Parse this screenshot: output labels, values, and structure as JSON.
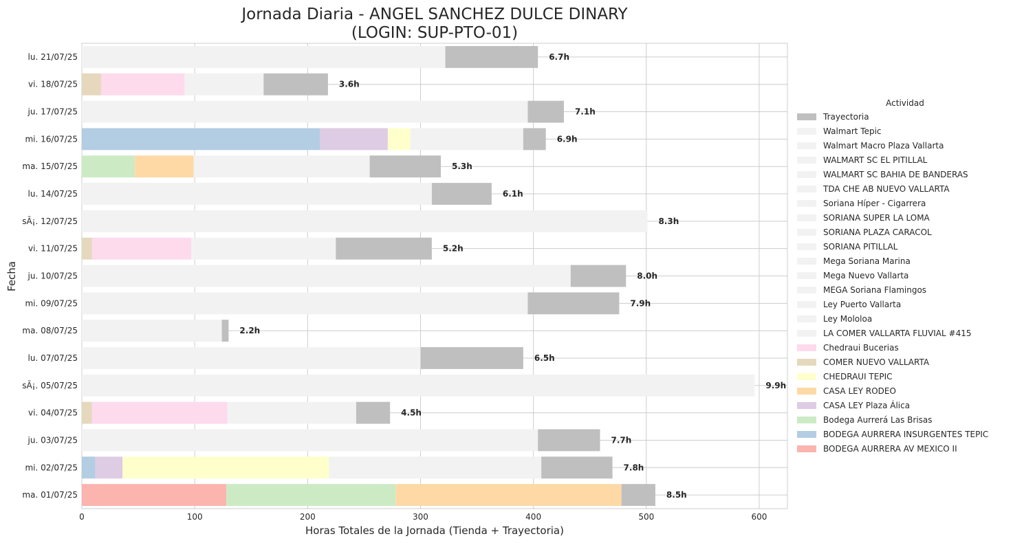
{
  "chart_data": {
    "type": "bar",
    "orientation": "horizontal",
    "stacked": true,
    "title_line1": "Jornada Diaria - ANGEL SANCHEZ DULCE DINARY",
    "title_line2": "(LOGIN: SUP-PTO-01)",
    "xlabel": "Horas Totales de la Jornada (Tienda + Trayectoria)",
    "ylabel": "Fecha",
    "xlim": [
      0,
      625
    ],
    "xticks": [
      0,
      100,
      200,
      300,
      400,
      500,
      600
    ],
    "grid": true,
    "legend_title": "Actividad",
    "legend_position": "center-right",
    "legend": [
      {
        "name": "Trayectoria",
        "color": "#bfbfbf"
      },
      {
        "name": "Walmart Tepic",
        "color": "#f2f2f2"
      },
      {
        "name": "Walmart Macro Plaza Vallarta",
        "color": "#f2f2f2"
      },
      {
        "name": "WALMART SC EL PITILLAL",
        "color": "#f2f2f2"
      },
      {
        "name": "WALMART SC BAHIA DE BANDERAS",
        "color": "#f2f2f2"
      },
      {
        "name": "TDA CHE AB NUEVO VALLARTA",
        "color": "#f2f2f2"
      },
      {
        "name": "Soriana Híper - Cigarrera",
        "color": "#f2f2f2"
      },
      {
        "name": "SORIANA SUPER LA LOMA",
        "color": "#f2f2f2"
      },
      {
        "name": "SORIANA PLAZA CARACOL",
        "color": "#f2f2f2"
      },
      {
        "name": "SORIANA PITILLAL",
        "color": "#f2f2f2"
      },
      {
        "name": "Mega Soriana Marina",
        "color": "#f2f2f2"
      },
      {
        "name": "Mega Nuevo Vallarta",
        "color": "#f2f2f2"
      },
      {
        "name": "MEGA Soriana Flamingos",
        "color": "#f2f2f2"
      },
      {
        "name": "Ley Puerto Vallarta",
        "color": "#f2f2f2"
      },
      {
        "name": "Ley Mololoa",
        "color": "#f2f2f2"
      },
      {
        "name": "LA COMER VALLARTA FLUVIAL #415",
        "color": "#f2f2f2"
      },
      {
        "name": "Chedraui Bucerias",
        "color": "#fddaec"
      },
      {
        "name": "COMER NUEVO VALLARTA",
        "color": "#e5d8bd"
      },
      {
        "name": "CHEDRAUI TEPIC",
        "color": "#ffffcc"
      },
      {
        "name": "CASA LEY RODEO",
        "color": "#fed9a6"
      },
      {
        "name": "CASA LEY Plaza Álica",
        "color": "#decbe4"
      },
      {
        "name": "Bodega Aurrerá Las Brisas",
        "color": "#ccebc5"
      },
      {
        "name": "BODEGA AURRERA INSURGENTES TEPIC",
        "color": "#b3cde3"
      },
      {
        "name": "BODEGA AURRERA AV MEXICO II",
        "color": "#fbb4ae"
      }
    ],
    "rows": [
      {
        "date": "lu. 21/07/25",
        "total_label": "6.7h",
        "segments": [
          {
            "activity": "Walmart Tepic",
            "value": 322
          },
          {
            "activity": "Trayectoria",
            "value": 82
          }
        ]
      },
      {
        "date": "vi. 18/07/25",
        "total_label": "3.6h",
        "segments": [
          {
            "activity": "COMER NUEVO VALLARTA",
            "value": 17
          },
          {
            "activity": "Chedraui Bucerias",
            "value": 74
          },
          {
            "activity": "Mega Nuevo Vallarta",
            "value": 70
          },
          {
            "activity": "Trayectoria",
            "value": 57
          }
        ]
      },
      {
        "date": "ju. 17/07/25",
        "total_label": "7.1h",
        "segments": [
          {
            "activity": "Walmart Tepic",
            "value": 395
          },
          {
            "activity": "Trayectoria",
            "value": 32
          }
        ]
      },
      {
        "date": "mi. 16/07/25",
        "total_label": "6.9h",
        "segments": [
          {
            "activity": "BODEGA AURRERA INSURGENTES TEPIC",
            "value": 211
          },
          {
            "activity": "CASA LEY Plaza Álica",
            "value": 60
          },
          {
            "activity": "CHEDRAUI TEPIC",
            "value": 20
          },
          {
            "activity": "Ley Mololoa",
            "value": 100
          },
          {
            "activity": "Trayectoria",
            "value": 20
          }
        ]
      },
      {
        "date": "ma. 15/07/25",
        "total_label": "5.3h",
        "segments": [
          {
            "activity": "Bodega Aurrerá Las Brisas",
            "value": 47
          },
          {
            "activity": "CASA LEY RODEO",
            "value": 52
          },
          {
            "activity": "Soriana Híper - Cigarrera",
            "value": 156
          },
          {
            "activity": "Trayectoria",
            "value": 63
          }
        ]
      },
      {
        "date": "lu. 14/07/25",
        "total_label": "6.1h",
        "segments": [
          {
            "activity": "Walmart Tepic",
            "value": 310
          },
          {
            "activity": "Trayectoria",
            "value": 53
          }
        ]
      },
      {
        "date": "sÃ¡. 12/07/25",
        "total_label": "8.3h",
        "segments": [
          {
            "activity": "Walmart Macro Plaza Vallarta",
            "value": 501
          }
        ]
      },
      {
        "date": "vi. 11/07/25",
        "total_label": "5.2h",
        "segments": [
          {
            "activity": "COMER NUEVO VALLARTA",
            "value": 9
          },
          {
            "activity": "Chedraui Bucerias",
            "value": 88
          },
          {
            "activity": "Mega Nuevo Vallarta",
            "value": 128
          },
          {
            "activity": "Trayectoria",
            "value": 85
          }
        ]
      },
      {
        "date": "ju. 10/07/25",
        "total_label": "8.0h",
        "segments": [
          {
            "activity": "Walmart Tepic",
            "value": 433
          },
          {
            "activity": "Trayectoria",
            "value": 49
          }
        ]
      },
      {
        "date": "mi. 09/07/25",
        "total_label": "7.9h",
        "segments": [
          {
            "activity": "Walmart Tepic",
            "value": 395
          },
          {
            "activity": "Trayectoria",
            "value": 81
          }
        ]
      },
      {
        "date": "ma. 08/07/25",
        "total_label": "2.2h",
        "segments": [
          {
            "activity": "Ley Puerto Vallarta",
            "value": 124
          },
          {
            "activity": "Trayectoria",
            "value": 6
          }
        ]
      },
      {
        "date": "lu. 07/07/25",
        "total_label": "6.5h",
        "segments": [
          {
            "activity": "Walmart Tepic",
            "value": 300
          },
          {
            "activity": "Trayectoria",
            "value": 91
          }
        ]
      },
      {
        "date": "sÃ¡. 05/07/25",
        "total_label": "9.9h",
        "segments": [
          {
            "activity": "Walmart Macro Plaza Vallarta",
            "value": 596
          }
        ]
      },
      {
        "date": "vi. 04/07/25",
        "total_label": "4.5h",
        "segments": [
          {
            "activity": "COMER NUEVO VALLARTA",
            "value": 9
          },
          {
            "activity": "Chedraui Bucerias",
            "value": 120
          },
          {
            "activity": "Mega Nuevo Vallarta",
            "value": 114
          },
          {
            "activity": "Trayectoria",
            "value": 30
          }
        ]
      },
      {
        "date": "ju. 03/07/25",
        "total_label": "7.7h",
        "segments": [
          {
            "activity": "Walmart Tepic",
            "value": 404
          },
          {
            "activity": "Trayectoria",
            "value": 55
          }
        ]
      },
      {
        "date": "mi. 02/07/25",
        "total_label": "7.8h",
        "segments": [
          {
            "activity": "BODEGA AURRERA INSURGENTES TEPIC",
            "value": 12
          },
          {
            "activity": "CASA LEY Plaza Álica",
            "value": 24
          },
          {
            "activity": "CHEDRAUI TEPIC",
            "value": 183
          },
          {
            "activity": "Ley Mololoa",
            "value": 188
          },
          {
            "activity": "Trayectoria",
            "value": 63
          }
        ]
      },
      {
        "date": "ma. 01/07/25",
        "total_label": "8.5h",
        "segments": [
          {
            "activity": "BODEGA AURRERA AV MEXICO II",
            "value": 128
          },
          {
            "activity": "Bodega Aurrerá Las Brisas",
            "value": 150
          },
          {
            "activity": "CASA LEY RODEO",
            "value": 200
          },
          {
            "activity": "Trayectoria",
            "value": 30
          }
        ]
      }
    ]
  }
}
